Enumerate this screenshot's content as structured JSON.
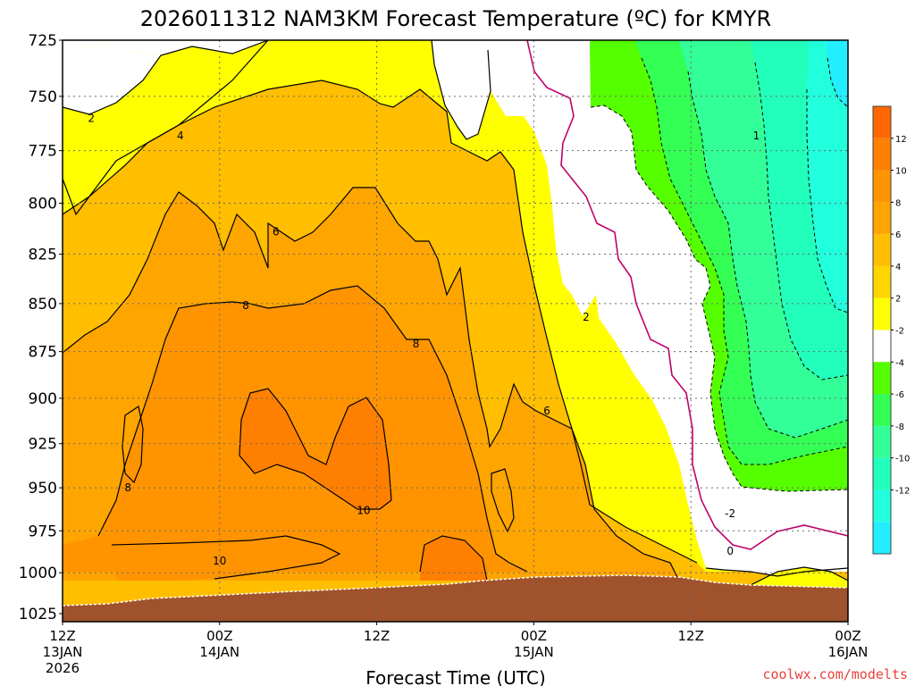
{
  "chart_data": {
    "type": "contour",
    "title": "2026011312 NAM3KM Forecast Temperature (ºC) for KMYR",
    "xlabel": "Forecast Time (UTC)",
    "ylabel": "",
    "x_ticks": [
      {
        "lines": [
          "12Z",
          "13JAN",
          "2026"
        ]
      },
      {
        "lines": [
          "00Z",
          "14JAN"
        ]
      },
      {
        "lines": [
          "12Z"
        ]
      },
      {
        "lines": [
          "00Z",
          "15JAN"
        ]
      },
      {
        "lines": [
          "12Z"
        ]
      },
      {
        "lines": [
          "00Z",
          "16JAN"
        ]
      }
    ],
    "x_range_hours": [
      0,
      60
    ],
    "y_ticks": [
      725,
      750,
      775,
      800,
      825,
      850,
      875,
      900,
      925,
      950,
      975,
      1000,
      1025
    ],
    "y_range": [
      725,
      1030
    ],
    "y_scale": "log-pressure",
    "grid": true,
    "colorbar": {
      "labels": [
        "12",
        "10",
        "8",
        "6",
        "4",
        "2",
        "-2",
        "-4",
        "-6",
        "-8",
        "-10",
        "-12"
      ],
      "colors": [
        "#ff6600",
        "#ff7f00",
        "#ff9400",
        "#ffa500",
        "#ffbe00",
        "#ffd500",
        "#ffff00",
        "#ffffff",
        "#55ff00",
        "#33ff55",
        "#33ff99",
        "#22ffbb",
        "#22ffdd",
        "#22eeff"
      ]
    },
    "contour_labels": [
      "2",
      "4",
      "6",
      "8",
      "8",
      "10",
      "10",
      "8",
      "6",
      "2",
      "-2",
      "0",
      "1"
    ],
    "legend": "right colorbar"
  },
  "credit": "coolwx.com/modelts"
}
